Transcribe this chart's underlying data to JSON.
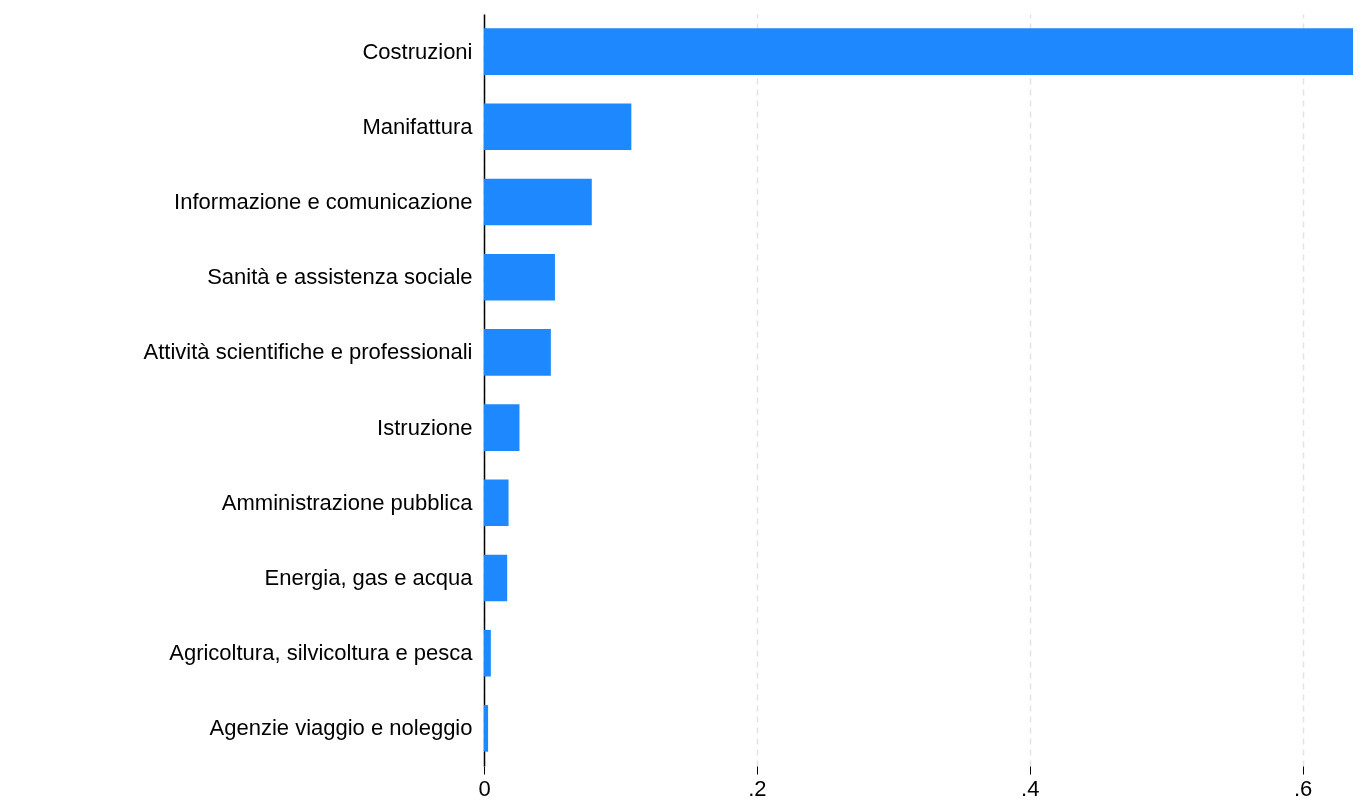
{
  "chart_data": {
    "type": "bar",
    "orientation": "horizontal",
    "categories": [
      "Costruzioni",
      "Manifattura",
      "Informazione e comunicazione",
      "Sanità e assistenza sociale",
      "Attività scientifiche e professionali",
      "Istruzione",
      "Amministrazione pubblica",
      "Energia, gas e acqua",
      "Agricoltura, silvicoltura e pesca",
      "Agenzie viaggio e noleggio"
    ],
    "values": [
      0.637,
      0.108,
      0.079,
      0.052,
      0.049,
      0.026,
      0.018,
      0.017,
      0.005,
      0.003
    ],
    "color": "#1e88ff",
    "xlim": [
      0,
      0.645
    ],
    "xticks": [
      0,
      {
        "value": 0.2,
        "label": ".2"
      },
      {
        "value": 0.4,
        "label": ".4"
      },
      {
        "value": 0.6,
        "label": ".6"
      }
    ],
    "grid": "x"
  }
}
